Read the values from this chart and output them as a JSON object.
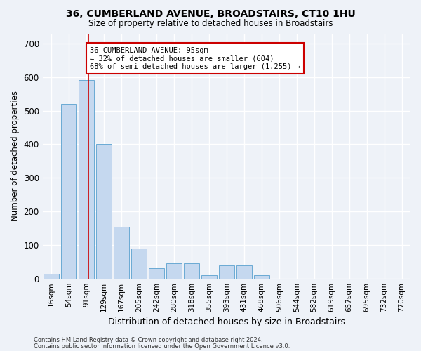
{
  "title": "36, CUMBERLAND AVENUE, BROADSTAIRS, CT10 1HU",
  "subtitle": "Size of property relative to detached houses in Broadstairs",
  "xlabel": "Distribution of detached houses by size in Broadstairs",
  "ylabel": "Number of detached properties",
  "bar_color": "#c5d8ef",
  "bar_edge_color": "#6aaad4",
  "categories": [
    "16sqm",
    "54sqm",
    "91sqm",
    "129sqm",
    "167sqm",
    "205sqm",
    "242sqm",
    "280sqm",
    "318sqm",
    "355sqm",
    "393sqm",
    "431sqm",
    "468sqm",
    "506sqm",
    "544sqm",
    "582sqm",
    "619sqm",
    "657sqm",
    "695sqm",
    "732sqm",
    "770sqm"
  ],
  "values": [
    15,
    520,
    590,
    400,
    155,
    90,
    30,
    45,
    45,
    10,
    40,
    40,
    10,
    0,
    0,
    0,
    0,
    0,
    0,
    0,
    0
  ],
  "ylim": [
    0,
    730
  ],
  "yticks": [
    0,
    100,
    200,
    300,
    400,
    500,
    600,
    700
  ],
  "annotation_text": "36 CUMBERLAND AVENUE: 95sqm\n← 32% of detached houses are smaller (604)\n68% of semi-detached houses are larger (1,255) →",
  "annotation_box_color": "#ffffff",
  "annotation_box_edgecolor": "#cc0000",
  "vline_color": "#cc0000",
  "footer1": "Contains HM Land Registry data © Crown copyright and database right 2024.",
  "footer2": "Contains public sector information licensed under the Open Government Licence v3.0.",
  "bg_color": "#eef2f8",
  "grid_color": "#ffffff"
}
